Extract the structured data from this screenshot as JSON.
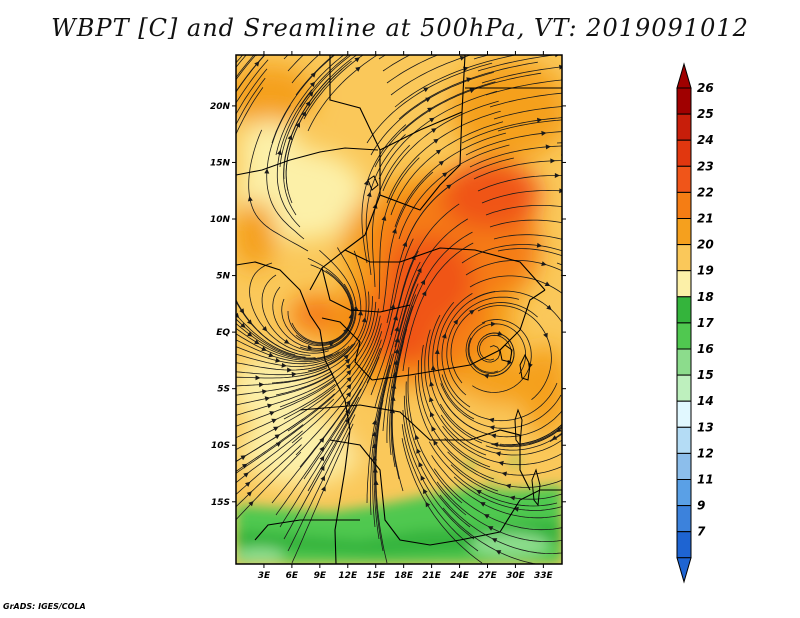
{
  "title": "WBPT [C] and Sreamline at 500hPa, VT: 2019091012",
  "credit": "GrADS: IGES/COLA",
  "map": {
    "lon_range": [
      0,
      35
    ],
    "lat_range": [
      -20.5,
      24.5
    ],
    "lat_labels": [
      {
        "lat": 20,
        "text": "20N"
      },
      {
        "lat": 15,
        "text": "15N"
      },
      {
        "lat": 10,
        "text": "10N"
      },
      {
        "lat": 5,
        "text": "5N"
      },
      {
        "lat": 0,
        "text": "EQ"
      },
      {
        "lat": -5,
        "text": "5S"
      },
      {
        "lat": -10,
        "text": "10S"
      },
      {
        "lat": -15,
        "text": "15S"
      }
    ],
    "lon_labels": [
      {
        "lon": 3,
        "text": "3E"
      },
      {
        "lon": 6,
        "text": "6E"
      },
      {
        "lon": 9,
        "text": "9E"
      },
      {
        "lon": 12,
        "text": "12E"
      },
      {
        "lon": 15,
        "text": "15E"
      },
      {
        "lon": 18,
        "text": "18E"
      },
      {
        "lon": 21,
        "text": "21E"
      },
      {
        "lon": 24,
        "text": "24E"
      },
      {
        "lon": 27,
        "text": "27E"
      },
      {
        "lon": 30,
        "text": "30E"
      },
      {
        "lon": 33,
        "text": "33E"
      }
    ]
  },
  "colorbar": {
    "levels": [
      {
        "label": "26",
        "color": "#a00000"
      },
      {
        "label": "25",
        "color": "#c81e0a"
      },
      {
        "label": "24",
        "color": "#e1370f"
      },
      {
        "label": "23",
        "color": "#f05519"
      },
      {
        "label": "22",
        "color": "#f57d14"
      },
      {
        "label": "21",
        "color": "#f5a01e"
      },
      {
        "label": "20",
        "color": "#fac85a"
      },
      {
        "label": "19",
        "color": "#fcf0a8"
      },
      {
        "label": "18",
        "color": "#34b43c"
      },
      {
        "label": "17",
        "color": "#50c850"
      },
      {
        "label": "16",
        "color": "#8cdc8c"
      },
      {
        "label": "15",
        "color": "#bef0be"
      },
      {
        "label": "14",
        "color": "#e1f8ff"
      },
      {
        "label": "13",
        "color": "#b4dcf5"
      },
      {
        "label": "12",
        "color": "#8cbeeb"
      },
      {
        "label": "11",
        "color": "#5aa0e6"
      },
      {
        "label": "9",
        "color": "#3c82dc"
      },
      {
        "label": "7",
        "color": "#1e64d2"
      }
    ],
    "top_color": "#a00000",
    "bottom_color": "#1e64d2"
  }
}
